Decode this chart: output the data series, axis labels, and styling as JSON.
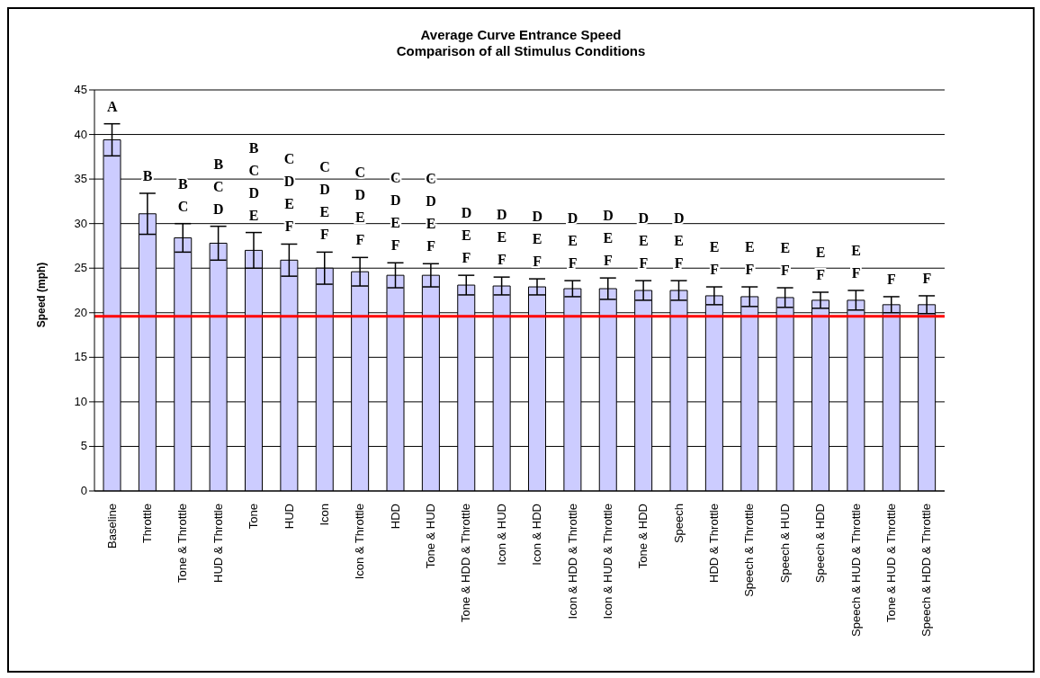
{
  "chart_data": {
    "type": "bar",
    "title": "Average Curve Entrance Speed",
    "subtitle": "Comparison of all Stimulus Conditions",
    "ylabel": "Speed (mph)",
    "categories": [
      "Baseline",
      "Throttle",
      "Tone & Throttle",
      "HUD & Throttle",
      "Tone",
      "HUD",
      "Icon",
      "Icon & Throttle",
      "HDD",
      "Tone & HUD",
      "Tone & HDD & Throttle",
      "Icon & HUD",
      "Icon & HDD",
      "Icon & HDD & Throttle",
      "Icon & HUD & Throttle",
      "Tone & HDD",
      "Speech",
      "HDD & Throttle",
      "Speech & Throttle",
      "Speech & HUD",
      "Speech & HDD",
      "Speech & HUD & Throttle",
      "Tone & HUD & Throttle",
      "Speech & HDD & Throttle"
    ],
    "values": [
      39.4,
      31.1,
      28.4,
      27.8,
      27.0,
      25.9,
      25.0,
      24.6,
      24.2,
      24.2,
      23.1,
      23.0,
      22.9,
      22.7,
      22.7,
      22.5,
      22.5,
      21.9,
      21.8,
      21.7,
      21.4,
      21.4,
      20.9,
      20.9
    ],
    "errors": [
      1.8,
      2.3,
      1.6,
      1.9,
      2.0,
      1.8,
      1.8,
      1.6,
      1.4,
      1.3,
      1.1,
      1.0,
      0.9,
      0.9,
      1.2,
      1.1,
      1.1,
      1.0,
      1.1,
      1.1,
      0.9,
      1.1,
      0.9,
      1.0
    ],
    "color": "#ccccff",
    "ylim": [
      0,
      45
    ],
    "yticks": [
      0,
      5,
      10,
      15,
      20,
      25,
      30,
      35,
      40,
      45
    ],
    "grid": "y",
    "ref_lines": [
      {
        "axis": "y",
        "value": 19.6,
        "color": "#ff0000"
      }
    ],
    "annotations": [
      "A",
      "B",
      "B\nC",
      "B\nC\nD",
      "B\nC\nD\nE",
      "C\nD\nE\nF",
      "C\nD\nE\nF",
      "C\nD\nE\nF",
      "C\nD\nE\nF",
      "C\nD\nE\nF",
      "D\nE\nF",
      "D\nE\nF",
      "D\nE\nF",
      "D\nE\nF",
      "D\nE\nF",
      "D\nE\nF",
      "D\nE\nF",
      "E\nF",
      "E\nF",
      "E\nF",
      "E\nF",
      "E\nF",
      "F",
      "F"
    ]
  }
}
